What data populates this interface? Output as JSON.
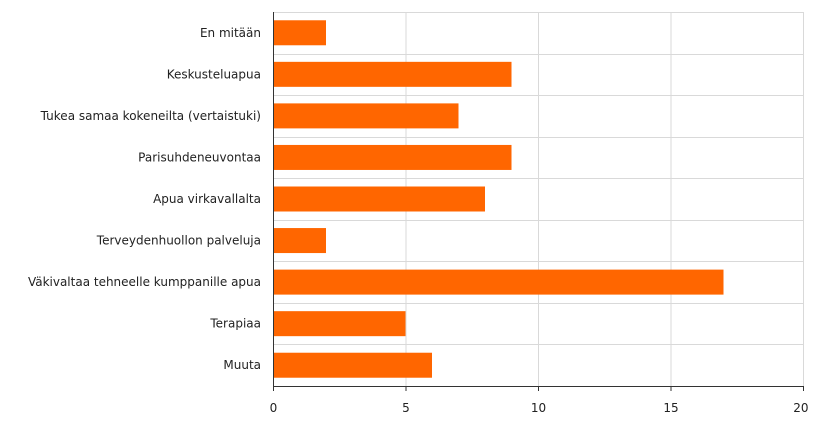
{
  "chart_data": {
    "type": "bar",
    "orientation": "horizontal",
    "categories": [
      "En mitään",
      "Keskusteluapua",
      "Tukea samaa kokeneilta (vertaistuki)",
      "Parisuhdeneuvontaa",
      "Apua virkavallalta",
      "Terveydenhuollon palveluja",
      "Väkivaltaa tehneelle kumppanille apua",
      "Terapiaa",
      "Muuta"
    ],
    "values": [
      2,
      9,
      7,
      9,
      8,
      2,
      17,
      5,
      6
    ],
    "xlim": [
      0,
      20
    ],
    "xticks": [
      0,
      5,
      10,
      15,
      20
    ],
    "xtick_labels": [
      "0",
      "5",
      "10",
      "15",
      "20"
    ],
    "title": "",
    "xlabel": "",
    "ylabel": "",
    "grid": true,
    "bar_color": "#ff6600",
    "grid_color": "#d9d9d9",
    "axis_color": "#333333"
  }
}
